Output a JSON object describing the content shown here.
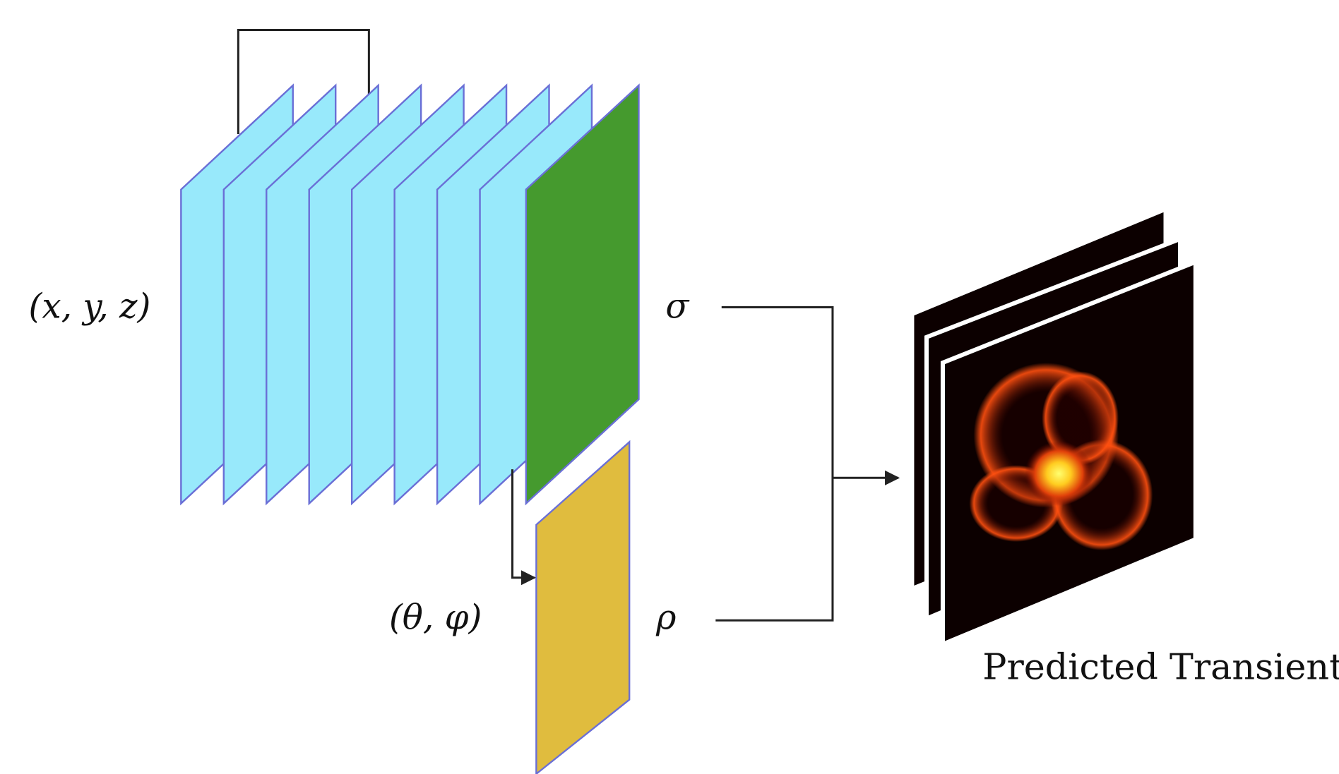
{
  "labels": {
    "input_position": "(x, y, z)",
    "sigma": "σ",
    "input_direction": "(θ, φ)",
    "rho": "ρ",
    "output": "Predicted Transient"
  }
}
